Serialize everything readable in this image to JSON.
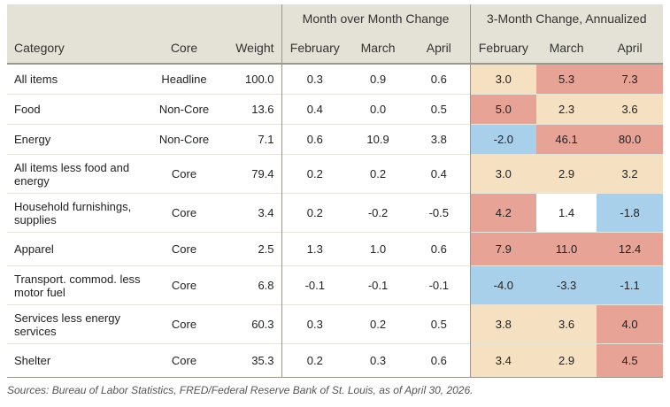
{
  "table": {
    "group_headers": {
      "mom": "Month over Month Change",
      "ann": "3-Month Change, Annualized"
    },
    "columns": [
      "Category",
      "Core",
      "Weight",
      "February",
      "March",
      "April",
      "February",
      "March",
      "April"
    ],
    "rows": [
      {
        "category": "All items",
        "core": "Headline",
        "weight": "100.0",
        "mom": [
          "0.3",
          "0.9",
          "0.6"
        ],
        "ann": [
          "3.0",
          "5.3",
          "7.3"
        ],
        "ann_colors": [
          "#f6e0c2",
          "#e8a397",
          "#e8a397"
        ]
      },
      {
        "category": "Food",
        "core": "Non-Core",
        "weight": "13.6",
        "mom": [
          "0.4",
          "0.0",
          "0.5"
        ],
        "ann": [
          "5.0",
          "2.3",
          "3.6"
        ],
        "ann_colors": [
          "#e8a397",
          "#f6e0c2",
          "#f6e0c2"
        ]
      },
      {
        "category": "Energy",
        "core": "Non-Core",
        "weight": "7.1",
        "mom": [
          "0.6",
          "10.9",
          "3.8"
        ],
        "ann": [
          "-2.0",
          "46.1",
          "80.0"
        ],
        "ann_colors": [
          "#a9d0ea",
          "#e8a397",
          "#e8a397"
        ]
      },
      {
        "category": "All items less food and energy",
        "core": "Core",
        "weight": "79.4",
        "mom": [
          "0.2",
          "0.2",
          "0.4"
        ],
        "ann": [
          "3.0",
          "2.9",
          "3.2"
        ],
        "ann_colors": [
          "#f6e0c2",
          "#f6e0c2",
          "#f6e0c2"
        ]
      },
      {
        "category": "Household furnishings, supplies",
        "core": "Core",
        "weight": "3.4",
        "mom": [
          "0.2",
          "-0.2",
          "-0.5"
        ],
        "ann": [
          "4.2",
          "1.4",
          "-1.8"
        ],
        "ann_colors": [
          "#e8a397",
          "#ffffff",
          "#a9d0ea"
        ]
      },
      {
        "category": "Apparel",
        "core": "Core",
        "weight": "2.5",
        "mom": [
          "1.3",
          "1.0",
          "0.6"
        ],
        "ann": [
          "7.9",
          "11.0",
          "12.4"
        ],
        "ann_colors": [
          "#e8a397",
          "#e8a397",
          "#e8a397"
        ]
      },
      {
        "category": "Transport. commod. less motor fuel",
        "core": "Core",
        "weight": "6.8",
        "mom": [
          "-0.1",
          "-0.1",
          "-0.1"
        ],
        "ann": [
          "-4.0",
          "-3.3",
          "-1.1"
        ],
        "ann_colors": [
          "#a9d0ea",
          "#a9d0ea",
          "#a9d0ea"
        ]
      },
      {
        "category": "Services less energy services",
        "core": "Core",
        "weight": "60.3",
        "mom": [
          "0.3",
          "0.2",
          "0.5"
        ],
        "ann": [
          "3.8",
          "3.6",
          "4.0"
        ],
        "ann_colors": [
          "#f6e0c2",
          "#f6e0c2",
          "#e8a397"
        ]
      },
      {
        "category": "Shelter",
        "core": "Core",
        "weight": "35.3",
        "mom": [
          "0.2",
          "0.3",
          "0.6"
        ],
        "ann": [
          "3.4",
          "2.9",
          "4.5"
        ],
        "ann_colors": [
          "#f6e0c2",
          "#f6e0c2",
          "#e8a397"
        ]
      }
    ]
  },
  "source": "Sources: Bureau of Labor Statistics, FRED/Federal Reserve Bank of St. Louis, as of April 30, 2026.",
  "colors": {
    "header_bg": "#e4e1d6",
    "hot": "#e8a397",
    "moderate": "#f6e0c2",
    "cool": "#a9d0ea",
    "neutral": "#ffffff"
  }
}
